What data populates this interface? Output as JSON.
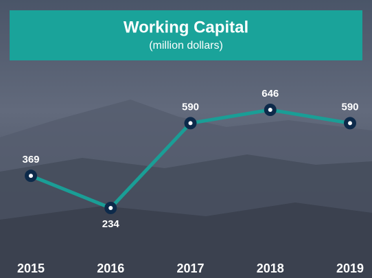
{
  "chart_data": {
    "type": "line",
    "title": "Working Capital",
    "subtitle": "(million dollars)",
    "categories": [
      "2015",
      "2016",
      "2017",
      "2018",
      "2019"
    ],
    "values": [
      369,
      234,
      590,
      646,
      590
    ],
    "color": "#1a9e96",
    "marker_color": "#0d2a4a"
  }
}
